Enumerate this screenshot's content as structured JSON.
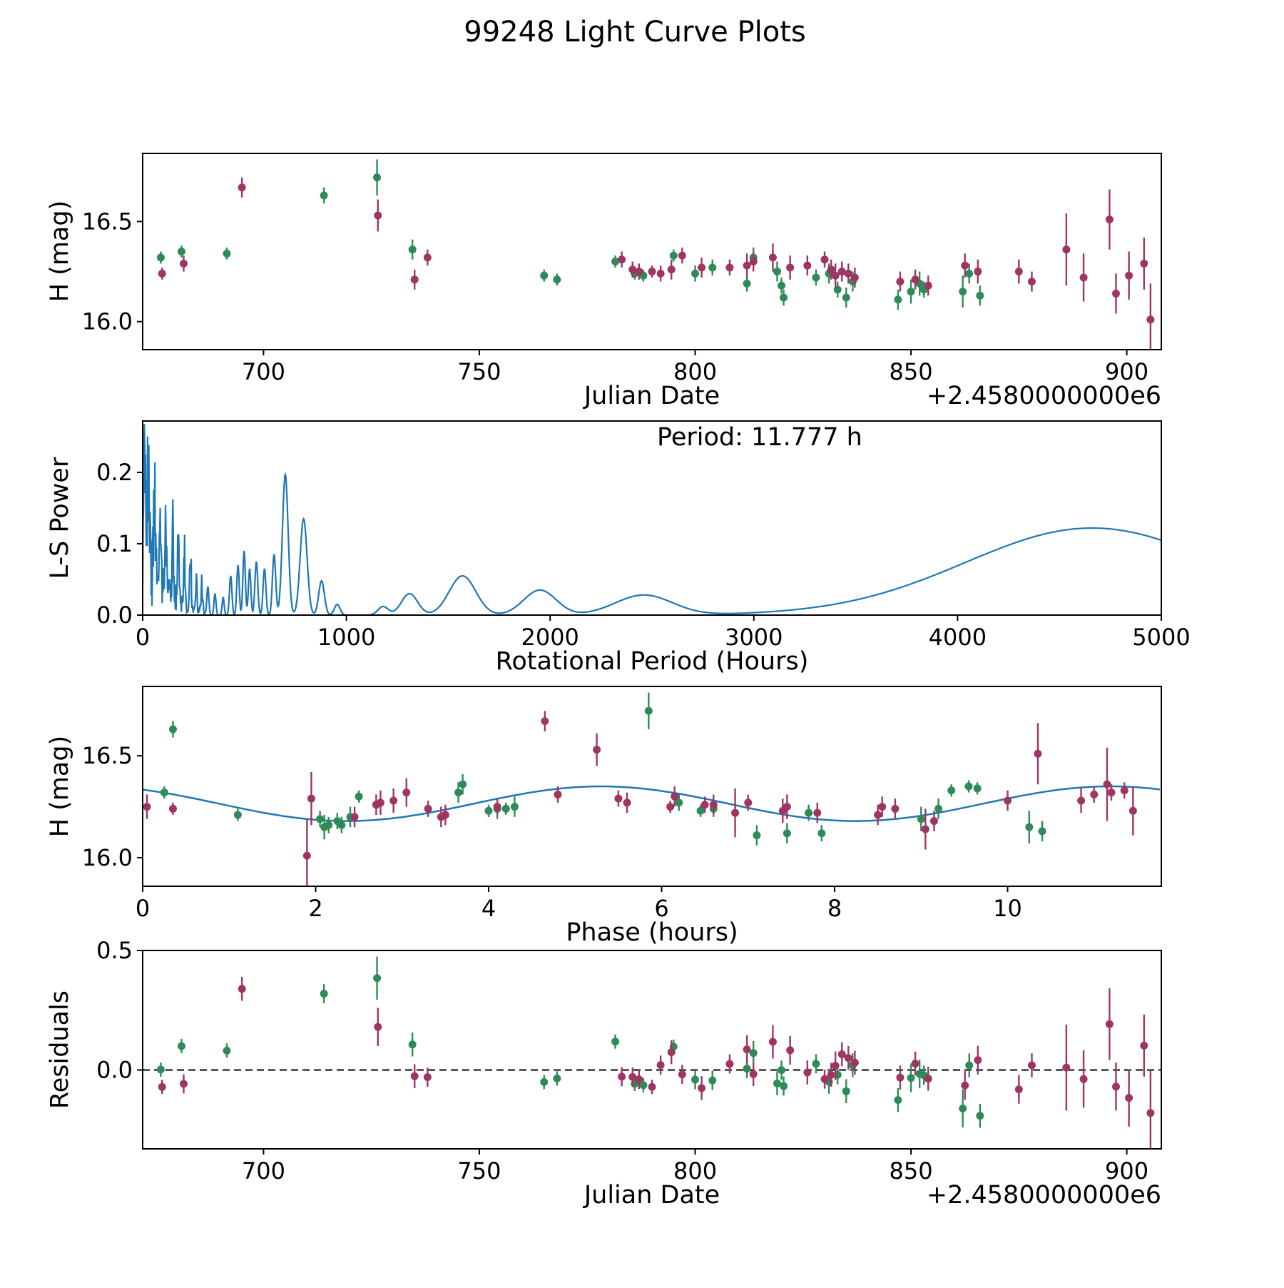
{
  "figure": {
    "title": "99248 Light Curve Plots",
    "background": "#ffffff"
  },
  "chart_data": {
    "plots": [
      {
        "id": "light-curve",
        "type": "scatter",
        "xlabel": "Julian Date",
        "xlabel_offset": "+2.4580000000e6",
        "ylabel": "H (mag)",
        "xlim": [
          672,
          908
        ],
        "ylim": [
          15.86,
          16.84
        ],
        "xtick_vals": [
          700,
          750,
          800,
          850,
          900
        ],
        "xtick_labels": [
          "700",
          "750",
          "800",
          "850",
          "900"
        ],
        "ytick_vals": [
          16.0,
          16.5
        ],
        "ytick_labels": [
          "16.0",
          "16.5"
        ]
      },
      {
        "id": "periodogram",
        "type": "line",
        "xlabel": "Rotational Period (Hours)",
        "ylabel": "L-S Power",
        "annotation": "Period: 11.777 h",
        "xlim": [
          0,
          5000
        ],
        "ylim": [
          0,
          0.272
        ],
        "xtick_vals": [
          0,
          1000,
          2000,
          3000,
          4000,
          5000
        ],
        "xtick_labels": [
          "0",
          "1000",
          "2000",
          "3000",
          "4000",
          "5000"
        ],
        "ytick_vals": [
          0.0,
          0.1,
          0.2
        ],
        "ytick_labels": [
          "0.0",
          "0.1",
          "0.2"
        ]
      },
      {
        "id": "phase-curve",
        "type": "scatter",
        "xlabel": "Phase (hours)",
        "ylabel": "H (mag)",
        "xlim": [
          0,
          11.777
        ],
        "ylim": [
          15.86,
          16.84
        ],
        "xtick_vals": [
          0,
          2,
          4,
          6,
          8,
          10
        ],
        "xtick_labels": [
          "0",
          "2",
          "4",
          "6",
          "8",
          "10"
        ],
        "ytick_vals": [
          16.0,
          16.5
        ],
        "ytick_labels": [
          "16.0",
          "16.5"
        ]
      },
      {
        "id": "residuals",
        "type": "scatter",
        "xlabel": "Julian Date",
        "xlabel_offset": "+2.4580000000e6",
        "ylabel": "Residuals",
        "xlim": [
          672,
          908
        ],
        "ylim": [
          -0.33,
          0.5
        ],
        "xtick_vals": [
          700,
          750,
          800,
          850,
          900
        ],
        "xtick_labels": [
          "700",
          "750",
          "800",
          "850",
          "900"
        ],
        "ytick_vals": [
          0.0,
          0.5
        ],
        "ytick_labels": [
          "0.0",
          "0.5"
        ],
        "zero_line": true
      }
    ],
    "observations": {
      "fields": [
        "jd_minus_2458000",
        "phase_hours",
        "h_mag",
        "h_mag_err"
      ],
      "series": [
        {
          "name": "observation-set-1",
          "color": "#2e8b57",
          "points": [
            [
              676.2,
              0.25,
              16.32,
              0.03
            ],
            [
              681.0,
              9.55,
              16.35,
              0.03
            ],
            [
              691.5,
              9.65,
              16.34,
              0.03
            ],
            [
              714.0,
              0.35,
              16.63,
              0.04
            ],
            [
              726.3,
              5.85,
              16.72,
              0.09
            ],
            [
              734.5,
              3.7,
              16.36,
              0.05
            ],
            [
              765.0,
              4.0,
              16.23,
              0.03
            ],
            [
              768.0,
              1.1,
              16.21,
              0.03
            ],
            [
              781.5,
              2.5,
              16.3,
              0.03
            ],
            [
              786.0,
              4.2,
              16.24,
              0.03
            ],
            [
              788.0,
              6.45,
              16.23,
              0.03
            ],
            [
              795.0,
              9.35,
              16.33,
              0.03
            ],
            [
              800.0,
              6.6,
              16.24,
              0.04
            ],
            [
              804.0,
              6.2,
              16.27,
              0.04
            ],
            [
              812.0,
              2.05,
              16.19,
              0.04
            ],
            [
              813.5,
              3.65,
              16.32,
              0.05
            ],
            [
              819.0,
              4.3,
              16.25,
              0.05
            ],
            [
              820.0,
              2.25,
              16.18,
              0.04
            ],
            [
              820.5,
              7.85,
              16.12,
              0.04
            ],
            [
              828.0,
              7.7,
              16.22,
              0.04
            ],
            [
              831.0,
              4.1,
              16.24,
              0.05
            ],
            [
              833.0,
              2.3,
              16.16,
              0.04
            ],
            [
              835.0,
              7.45,
              16.12,
              0.05
            ],
            [
              836.5,
              2.4,
              16.2,
              0.05
            ],
            [
              847.0,
              7.1,
              16.11,
              0.05
            ],
            [
              850.0,
              2.1,
              16.15,
              0.06
            ],
            [
              852.0,
              9.0,
              16.19,
              0.06
            ],
            [
              853.0,
              2.15,
              16.16,
              0.04
            ],
            [
              862.0,
              10.25,
              16.15,
              0.08
            ],
            [
              863.5,
              9.2,
              16.24,
              0.05
            ],
            [
              866.0,
              10.4,
              16.13,
              0.05
            ]
          ]
        },
        {
          "name": "observation-set-2",
          "color": "#9e3563",
          "points": [
            [
              676.5,
              0.35,
              16.24,
              0.03
            ],
            [
              681.5,
              5.5,
              16.29,
              0.04
            ],
            [
              695.0,
              4.65,
              16.67,
              0.05
            ],
            [
              726.5,
              5.25,
              16.53,
              0.08
            ],
            [
              735.0,
              3.5,
              16.21,
              0.05
            ],
            [
              738.0,
              11.2,
              16.32,
              0.04
            ],
            [
              783.0,
              4.8,
              16.31,
              0.04
            ],
            [
              785.5,
              6.5,
              16.26,
              0.04
            ],
            [
              787.0,
              4.1,
              16.25,
              0.04
            ],
            [
              790.0,
              6.1,
              16.25,
              0.03
            ],
            [
              792.0,
              3.3,
              16.24,
              0.04
            ],
            [
              794.5,
              2.7,
              16.26,
              0.05
            ],
            [
              797.0,
              11.35,
              16.33,
              0.04
            ],
            [
              801.5,
              5.6,
              16.27,
              0.05
            ],
            [
              808.0,
              7.0,
              16.27,
              0.04
            ],
            [
              812.0,
              2.9,
              16.28,
              0.06
            ],
            [
              813.5,
              6.15,
              16.3,
              0.05
            ],
            [
              818.0,
              3.05,
              16.32,
              0.07
            ],
            [
              822.0,
              2.75,
              16.27,
              0.06
            ],
            [
              826.0,
              10.0,
              16.28,
              0.05
            ],
            [
              830.0,
              11.0,
              16.31,
              0.04
            ],
            [
              831.5,
              6.6,
              16.26,
              0.05
            ],
            [
              832.5,
              7.4,
              16.23,
              0.06
            ],
            [
              834.0,
              8.55,
              16.25,
              0.05
            ],
            [
              835.5,
              8.7,
              16.24,
              0.05
            ],
            [
              837.0,
              7.8,
              16.22,
              0.05
            ],
            [
              847.5,
              3.45,
              16.2,
              0.05
            ],
            [
              851.0,
              8.5,
              16.21,
              0.05
            ],
            [
              854.0,
              9.15,
              16.18,
              0.05
            ],
            [
              862.5,
              10.85,
              16.28,
              0.06
            ],
            [
              865.5,
              7.45,
              16.25,
              0.06
            ],
            [
              875.0,
              0.05,
              16.25,
              0.06
            ],
            [
              878.0,
              2.45,
              16.2,
              0.05
            ],
            [
              886.0,
              11.15,
              16.36,
              0.18
            ],
            [
              890.0,
              6.85,
              16.22,
              0.12
            ],
            [
              896.0,
              10.35,
              16.51,
              0.15
            ],
            [
              897.5,
              9.05,
              16.14,
              0.1
            ],
            [
              900.5,
              11.45,
              16.23,
              0.12
            ],
            [
              904.0,
              1.95,
              16.29,
              0.13
            ],
            [
              905.5,
              1.9,
              16.01,
              0.18
            ]
          ]
        }
      ]
    },
    "fit_model": {
      "type": "cosine",
      "mean_mag": 16.265,
      "amplitude": 0.085,
      "period_hours": 11.777,
      "harmonic_period_hours": 5.8885,
      "phase_of_max": 5.3,
      "color": "#1f77b4"
    },
    "periodogram_model": {
      "color": "#1f77b4",
      "noise": {
        "x_max": 310,
        "amp": 0.17,
        "decay": 110,
        "seed": 20240601
      },
      "peaks": [
        [
          8,
          0.26,
          5
        ],
        [
          30,
          0.21,
          6
        ],
        [
          58,
          0.17,
          5
        ],
        [
          85,
          0.15,
          5
        ],
        [
          112,
          0.14,
          4
        ],
        [
          148,
          0.185,
          4
        ],
        [
          175,
          0.125,
          4
        ],
        [
          205,
          0.105,
          4
        ],
        [
          235,
          0.095,
          4
        ],
        [
          262,
          0.065,
          4
        ],
        [
          290,
          0.05,
          4
        ],
        [
          320,
          0.04,
          5
        ],
        [
          355,
          0.03,
          5
        ],
        [
          395,
          0.025,
          5
        ],
        [
          432,
          0.055,
          6
        ],
        [
          468,
          0.07,
          6
        ],
        [
          498,
          0.09,
          6
        ],
        [
          525,
          0.065,
          6
        ],
        [
          558,
          0.075,
          7
        ],
        [
          598,
          0.065,
          7
        ],
        [
          645,
          0.085,
          8
        ],
        [
          700,
          0.197,
          14
        ],
        [
          790,
          0.135,
          17
        ],
        [
          878,
          0.048,
          14
        ],
        [
          955,
          0.015,
          14
        ],
        [
          1180,
          0.012,
          25
        ],
        [
          1310,
          0.03,
          40
        ],
        [
          1570,
          0.055,
          65
        ],
        [
          1950,
          0.035,
          80
        ],
        [
          2460,
          0.028,
          140
        ],
        [
          4660,
          0.122,
          620
        ]
      ]
    }
  }
}
